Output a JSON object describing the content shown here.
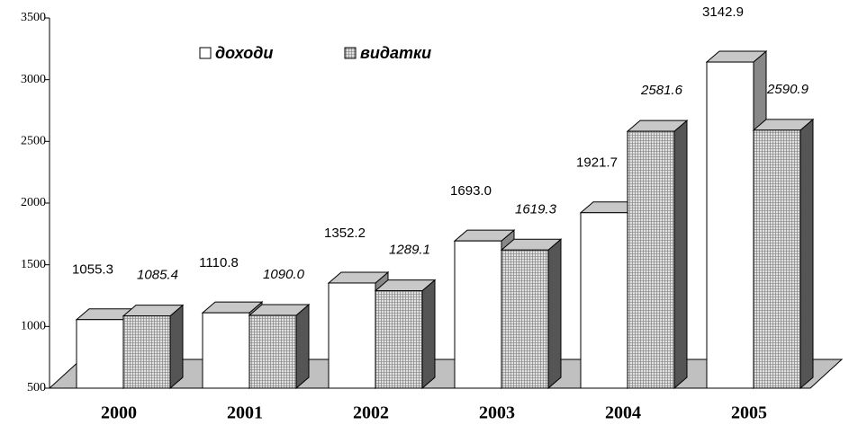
{
  "chart_data": {
    "type": "bar3d",
    "categories": [
      "2000",
      "2001",
      "2002",
      "2003",
      "2004",
      "2005"
    ],
    "series": [
      {
        "name": "доходи",
        "color": "#ffffff",
        "values": [
          1055.3,
          1110.8,
          1352.2,
          1693.0,
          1921.7,
          3142.9
        ],
        "value_labels": [
          "1055.3",
          "1110.8",
          "1352.2",
          "1693.0",
          "1921.7",
          "3142.9"
        ]
      },
      {
        "name": "видатки",
        "color": "#bdbdbd",
        "values": [
          1085.4,
          1090.0,
          1289.1,
          1619.3,
          2581.6,
          2590.9
        ],
        "value_labels": [
          "1085.4",
          "1090.0",
          "1289.1",
          "1619.3",
          "2581.6",
          "2590.9"
        ]
      }
    ],
    "ylim": [
      500,
      3500
    ],
    "yticks": [
      500,
      1000,
      1500,
      2000,
      2500,
      3000,
      3500
    ],
    "legend": "top"
  }
}
